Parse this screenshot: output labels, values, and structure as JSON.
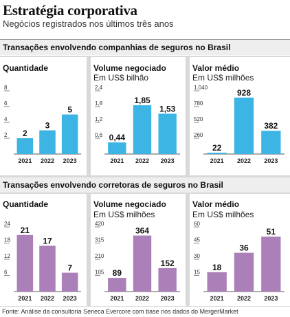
{
  "title": "Estratégia corporativa",
  "subtitle": "Negócios registrados nos últimos três anos",
  "sections": [
    {
      "title": "Transações envolvendo companhias de seguros no Brasil"
    },
    {
      "title": "Transações envolvendo corretoras de seguros no Brasil"
    }
  ],
  "source": "Fonte: Análise da consultoria Seneca Evercore com base nos dados do MergerMarket",
  "colors": {
    "blue": "#3db5e4",
    "purple": "#ab7fb8",
    "axis": "#555555"
  },
  "chart_data": [
    {
      "type": "bar",
      "title": "Quantidade",
      "ylabel": "",
      "categories": [
        "2021",
        "2022",
        "2023"
      ],
      "values": [
        2,
        3,
        5
      ],
      "data_labels": [
        "2",
        "3",
        "5"
      ],
      "yticks": [
        2,
        4,
        6,
        8
      ],
      "ytick_labels": [
        "2",
        "4",
        "6",
        "8"
      ],
      "ylim": [
        0,
        8
      ],
      "color": "blue"
    },
    {
      "type": "bar",
      "title": "Volume negociado",
      "ylabel": "Em US$ bilhão",
      "categories": [
        "2021",
        "2022",
        "2023"
      ],
      "values": [
        0.44,
        1.85,
        1.53
      ],
      "data_labels": [
        "0,44",
        "1,85",
        "1,53"
      ],
      "yticks": [
        0.6,
        1.2,
        1.8,
        2.4
      ],
      "ytick_labels": [
        "0,6",
        "1,2",
        "1,8",
        "2,4"
      ],
      "ylim": [
        0,
        2.4
      ],
      "color": "blue"
    },
    {
      "type": "bar",
      "title": "Valor médio",
      "ylabel": "Em US$ milhões",
      "categories": [
        "2021",
        "2022",
        "2023"
      ],
      "values": [
        22,
        928,
        382
      ],
      "data_labels": [
        "22",
        "928",
        "382"
      ],
      "yticks": [
        260,
        520,
        780,
        1040
      ],
      "ytick_labels": [
        "260",
        "520",
        "780",
        "1.040"
      ],
      "ylim": [
        0,
        1040
      ],
      "color": "blue"
    },
    {
      "type": "bar",
      "title": "Quantidade",
      "ylabel": "",
      "categories": [
        "2021",
        "2022",
        "2023"
      ],
      "values": [
        21,
        17,
        7
      ],
      "data_labels": [
        "21",
        "17",
        "7"
      ],
      "yticks": [
        6,
        12,
        18,
        24
      ],
      "ytick_labels": [
        "6",
        "12",
        "18",
        "24"
      ],
      "ylim": [
        0,
        24
      ],
      "color": "purple"
    },
    {
      "type": "bar",
      "title": "Volume negociado",
      "ylabel": "Em US$ milhões",
      "categories": [
        "2021",
        "2022",
        "2023"
      ],
      "values": [
        89,
        364,
        152
      ],
      "data_labels": [
        "89",
        "364",
        "152"
      ],
      "yticks": [
        105,
        210,
        315,
        420
      ],
      "ytick_labels": [
        "105",
        "210",
        "315",
        "420"
      ],
      "ylim": [
        0,
        420
      ],
      "color": "purple"
    },
    {
      "type": "bar",
      "title": "Valor médio",
      "ylabel": "Em US$ milhões",
      "categories": [
        "2021",
        "2022",
        "2023"
      ],
      "values": [
        18,
        36,
        51
      ],
      "data_labels": [
        "18",
        "36",
        "51"
      ],
      "yticks": [
        15,
        30,
        45,
        60
      ],
      "ytick_labels": [
        "15",
        "30",
        "45",
        "60"
      ],
      "ylim": [
        0,
        60
      ],
      "color": "purple"
    }
  ]
}
